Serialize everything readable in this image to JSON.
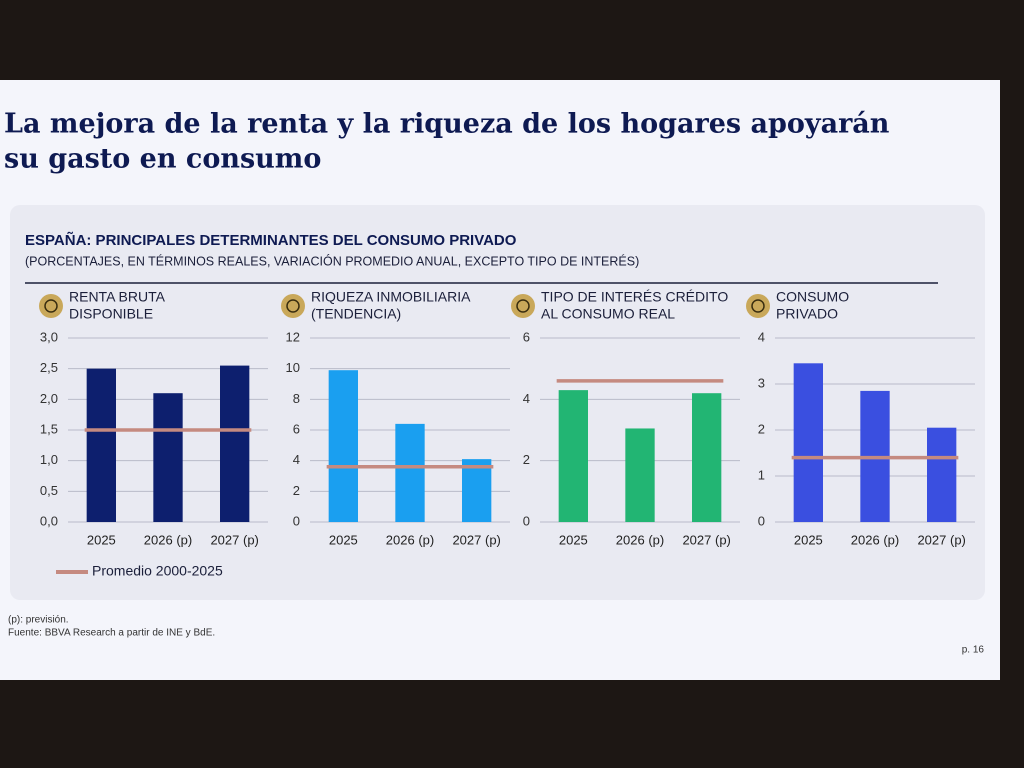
{
  "title_lines": [
    "La mejora de la renta y la riqueza de los hogares apoyarán",
    "su gasto en consumo"
  ],
  "group_title": "ESPAÑA: PRINCIPALES DETERMINANTES DEL CONSUMO PRIVADO",
  "group_subtitle": "(PORCENTAJES, EN TÉRMINOS REALES, VARIACIÓN PROMEDIO ANUAL, EXCEPTO TIPO DE INTERÉS)",
  "legend": {
    "name": "Promedio 2000-2025",
    "color": "#c58a80"
  },
  "footnotes": [
    "(p): previsión.",
    "Fuente: BBVA Research a partir de INE y BdE."
  ],
  "page_number": "p. 16",
  "chart_data": [
    {
      "type": "bar",
      "title_lines": [
        "RENTA BRUTA",
        "DISPONIBLE"
      ],
      "categories": [
        "2025",
        "2026 (p)",
        "2027 (p)"
      ],
      "values": [
        2.5,
        2.1,
        2.55
      ],
      "color": "#0d1f6e",
      "average": 1.5,
      "ylim": [
        0,
        3
      ],
      "yticks": [
        {
          "value": 0,
          "label": "0,0"
        },
        {
          "value": 0.5,
          "label": "0,5"
        },
        {
          "value": 1,
          "label": "1,0"
        },
        {
          "value": 1.5,
          "label": "1,5"
        },
        {
          "value": 2,
          "label": "2,0"
        },
        {
          "value": 2.5,
          "label": "2,5"
        },
        {
          "value": 3,
          "label": "3,0"
        }
      ],
      "grid": true
    },
    {
      "type": "bar",
      "title_lines": [
        "RIQUEZA INMOBILIARIA",
        "(TENDENCIA)"
      ],
      "categories": [
        "2025",
        "2026 (p)",
        "2027 (p)"
      ],
      "values": [
        9.9,
        6.4,
        4.1
      ],
      "color": "#1a9ff0",
      "average": 3.6,
      "ylim": [
        0,
        12
      ],
      "yticks": [
        0,
        2,
        4,
        6,
        8,
        10,
        12
      ],
      "grid": true
    },
    {
      "type": "bar",
      "title_lines": [
        "TIPO DE INTERÉS CRÉDITO",
        "AL CONSUMO REAL"
      ],
      "categories": [
        "2025",
        "2026 (p)",
        "2027 (p)"
      ],
      "values": [
        4.3,
        3.05,
        4.2
      ],
      "color": "#22b573",
      "average": 4.6,
      "ylim": [
        0,
        6
      ],
      "yticks": [
        0,
        2,
        4,
        6
      ],
      "grid": true
    },
    {
      "type": "bar",
      "title_lines": [
        "CONSUMO",
        "PRIVADO"
      ],
      "categories": [
        "2025",
        "2026 (p)",
        "2027 (p)"
      ],
      "values": [
        3.45,
        2.85,
        2.05
      ],
      "color": "#3a4fe0",
      "average": 1.4,
      "ylim": [
        0,
        4
      ],
      "yticks": [
        0,
        1,
        2,
        3,
        4
      ],
      "grid": true
    }
  ]
}
